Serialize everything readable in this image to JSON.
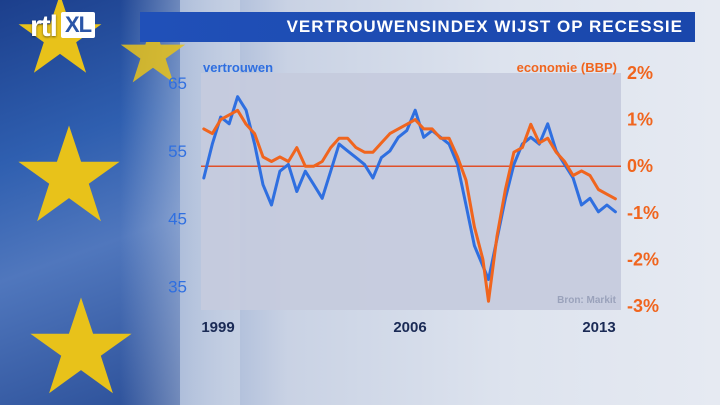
{
  "header": {
    "title": "VERTROUWENSINDEX WIJST OP RECESSIE"
  },
  "logo": {
    "main": "rtl",
    "box": "XL"
  },
  "colors": {
    "blue": "#2f6fe0",
    "orange": "#f0651e",
    "title_bg": "#1f4eb5"
  },
  "chart_data": {
    "type": "line",
    "title": "VERTROUWENSINDEX WIJST OP RECESSIE",
    "source": "Bron: Markit",
    "x_ticks": [
      "1999",
      "2006",
      "2013"
    ],
    "x_range": [
      1998.9,
      2013.8
    ],
    "y_left": {
      "label": "vertrouwen",
      "ticks": [
        65,
        55,
        45,
        35
      ],
      "range": [
        31.5,
        66.5
      ]
    },
    "y_right": {
      "label": "economie (BBP)",
      "ticks": [
        "2%",
        "1%",
        "0%",
        "-1%",
        "-2%",
        "-3%"
      ],
      "tick_values": [
        2,
        1,
        0,
        -1,
        -2,
        -3
      ],
      "range": [
        -3,
        2
      ]
    },
    "zero_line": 0,
    "series": [
      {
        "name": "vertrouwen",
        "axis": "left",
        "color": "#2f6fe0",
        "x": [
          1999.0,
          1999.3,
          1999.6,
          1999.9,
          2000.2,
          2000.5,
          2000.8,
          2001.1,
          2001.4,
          2001.7,
          2002.0,
          2002.3,
          2002.6,
          2002.9,
          2003.2,
          2003.5,
          2003.8,
          2004.1,
          2004.4,
          2004.7,
          2005.0,
          2005.3,
          2005.6,
          2005.9,
          2006.2,
          2006.5,
          2006.8,
          2007.1,
          2007.4,
          2007.7,
          2008.0,
          2008.3,
          2008.6,
          2008.9,
          2009.1,
          2009.4,
          2009.7,
          2010.0,
          2010.3,
          2010.6,
          2010.9,
          2011.2,
          2011.5,
          2011.8,
          2012.1,
          2012.4,
          2012.7,
          2013.0,
          2013.3,
          2013.6
        ],
        "values": [
          51,
          56,
          60,
          59,
          63,
          61,
          56,
          50,
          47,
          52,
          53,
          49,
          52,
          50,
          48,
          52,
          56,
          55,
          54,
          53,
          51,
          54,
          55,
          57,
          58,
          61,
          57,
          58,
          57,
          56,
          53,
          47,
          41,
          38,
          36,
          42,
          48,
          53,
          56,
          57,
          56,
          59,
          55,
          53,
          51,
          47,
          48,
          46,
          47,
          46
        ]
      },
      {
        "name": "economie (BBP)",
        "axis": "right",
        "color": "#f0651e",
        "x": [
          1999.0,
          1999.3,
          1999.6,
          1999.9,
          2000.2,
          2000.5,
          2000.8,
          2001.1,
          2001.4,
          2001.7,
          2002.0,
          2002.3,
          2002.6,
          2002.9,
          2003.2,
          2003.5,
          2003.8,
          2004.1,
          2004.4,
          2004.7,
          2005.0,
          2005.3,
          2005.6,
          2005.9,
          2006.2,
          2006.5,
          2006.8,
          2007.1,
          2007.4,
          2007.7,
          2008.0,
          2008.3,
          2008.6,
          2008.9,
          2009.1,
          2009.4,
          2009.7,
          2010.0,
          2010.3,
          2010.6,
          2010.9,
          2011.2,
          2011.5,
          2011.8,
          2012.1,
          2012.4,
          2012.7,
          2013.0,
          2013.3,
          2013.6
        ],
        "values": [
          0.8,
          0.7,
          1.0,
          1.1,
          1.2,
          0.9,
          0.7,
          0.2,
          0.1,
          0.2,
          0.1,
          0.4,
          0.0,
          0.0,
          0.1,
          0.4,
          0.6,
          0.6,
          0.4,
          0.3,
          0.3,
          0.5,
          0.7,
          0.8,
          0.9,
          1.0,
          0.8,
          0.8,
          0.6,
          0.6,
          0.2,
          -0.3,
          -1.3,
          -2.0,
          -2.9,
          -1.5,
          -0.5,
          0.3,
          0.4,
          0.9,
          0.5,
          0.6,
          0.3,
          0.1,
          -0.2,
          -0.1,
          -0.2,
          -0.5,
          -0.6,
          -0.7
        ]
      }
    ],
    "legend": "inline-top"
  }
}
